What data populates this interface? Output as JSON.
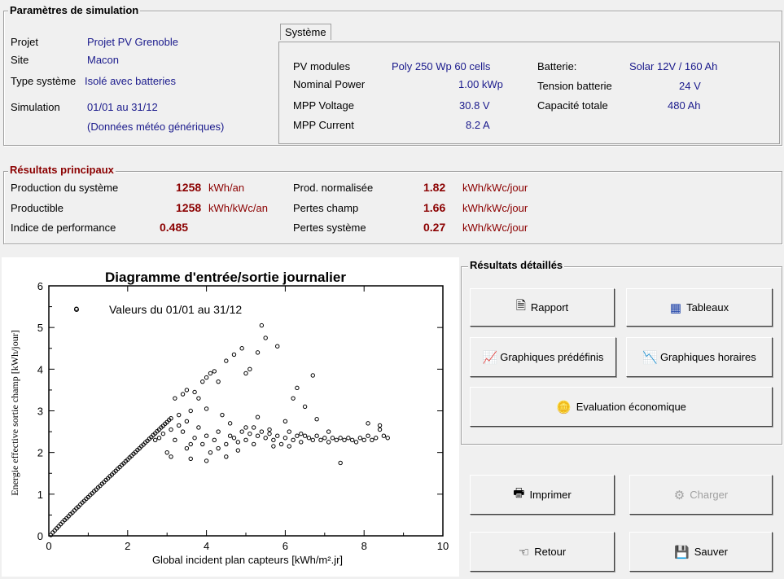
{
  "sim_params": {
    "title": "Paramètres de simulation",
    "projet_label": "Projet",
    "projet_value": "Projet PV Grenoble",
    "site_label": "Site",
    "site_value": "Macon",
    "type_label": "Type système",
    "type_value": "Isolé avec batteries",
    "simulation_label": "Simulation",
    "simulation_value": "01/01 au 31/12",
    "simulation_note": "(Données météo génériques)"
  },
  "systeme": {
    "tab_label": "Système",
    "pv_modules_label": "PV modules",
    "pv_modules_value": "Poly 250 Wp  60 cells",
    "nominal_power_label": "Nominal Power",
    "nominal_power_value": "1.00  kWp",
    "mpp_voltage_label": "MPP Voltage",
    "mpp_voltage_value": "30.8  V",
    "mpp_current_label": "MPP Current",
    "mpp_current_value": "8.2  A",
    "batterie_label": "Batterie:",
    "batterie_value": "Solar 12V / 160 Ah",
    "tension_label": "Tension batterie",
    "tension_value": "24   V",
    "capacite_label": "Capacité totale",
    "capacite_value": "480   Ah"
  },
  "resultats": {
    "title": "Résultats principaux",
    "production_label": "Production du système",
    "production_value": "1258",
    "production_unit": "kWh/an",
    "productible_label": "Productible",
    "productible_value": "1258",
    "productible_unit": "kWh/kWc/an",
    "indice_label": "Indice de performance",
    "indice_value": "0.485",
    "prod_norm_label": "Prod. normalisée",
    "prod_norm_value": "1.82",
    "prod_norm_unit": "kWh/kWc/jour",
    "pertes_champ_label": "Pertes champ",
    "pertes_champ_value": "1.66",
    "pertes_champ_unit": "kWh/kWc/jour",
    "pertes_sys_label": "Pertes système",
    "pertes_sys_value": "0.27",
    "pertes_sys_unit": "kWh/kWc/jour"
  },
  "details": {
    "title": "Résultats détaillés",
    "rapport": "Rapport",
    "tableaux": "Tableaux",
    "graph_predef": "Graphiques prédéfinis",
    "graph_horaires": "Graphiques horaires",
    "evaluation": "Evaluation économique"
  },
  "actions": {
    "imprimer": "Imprimer",
    "charger": "Charger",
    "retour": "Retour",
    "sauver": "Sauver"
  },
  "icons": {
    "rapport": "document-icon",
    "tableaux": "table-icon",
    "graph_predef": "chart-icon",
    "graph_horaires": "hourly-chart-icon",
    "evaluation": "coins-icon",
    "imprimer": "printer-icon",
    "charger": "load-icon",
    "retour": "back-hand-icon",
    "sauver": "save-icon"
  },
  "chart_data": {
    "type": "scatter",
    "title": "Diagramme d'entrée/sortie journalier",
    "legend": "Valeurs du 01/01 au 31/12",
    "xlabel": "Global incident plan capteurs [kWh/m².jr]",
    "ylabel": "Energie effective sortie champ [kWh/jour]",
    "xlim": [
      0,
      10
    ],
    "ylim": [
      0,
      6
    ],
    "xticks": [
      "0",
      "2",
      "4",
      "6",
      "8",
      "10"
    ],
    "yticks": [
      "0",
      "1",
      "2",
      "3",
      "4",
      "5",
      "6"
    ],
    "points": [
      [
        0.05,
        0.02
      ],
      [
        0.1,
        0.08
      ],
      [
        0.15,
        0.13
      ],
      [
        0.2,
        0.18
      ],
      [
        0.25,
        0.23
      ],
      [
        0.3,
        0.28
      ],
      [
        0.35,
        0.33
      ],
      [
        0.4,
        0.38
      ],
      [
        0.45,
        0.42
      ],
      [
        0.5,
        0.47
      ],
      [
        0.55,
        0.52
      ],
      [
        0.6,
        0.56
      ],
      [
        0.65,
        0.61
      ],
      [
        0.7,
        0.66
      ],
      [
        0.75,
        0.7
      ],
      [
        0.8,
        0.75
      ],
      [
        0.85,
        0.8
      ],
      [
        0.9,
        0.84
      ],
      [
        0.95,
        0.89
      ],
      [
        1.0,
        0.93
      ],
      [
        1.05,
        0.98
      ],
      [
        1.1,
        1.02
      ],
      [
        1.15,
        1.07
      ],
      [
        1.2,
        1.11
      ],
      [
        1.25,
        1.16
      ],
      [
        1.3,
        1.2
      ],
      [
        1.35,
        1.25
      ],
      [
        1.4,
        1.29
      ],
      [
        1.45,
        1.34
      ],
      [
        1.5,
        1.38
      ],
      [
        1.55,
        1.43
      ],
      [
        1.6,
        1.47
      ],
      [
        1.65,
        1.52
      ],
      [
        1.7,
        1.56
      ],
      [
        1.75,
        1.61
      ],
      [
        1.8,
        1.65
      ],
      [
        1.85,
        1.7
      ],
      [
        1.9,
        1.74
      ],
      [
        1.95,
        1.79
      ],
      [
        2.0,
        1.83
      ],
      [
        2.05,
        1.88
      ],
      [
        2.1,
        1.92
      ],
      [
        2.15,
        1.97
      ],
      [
        2.2,
        2.01
      ],
      [
        2.25,
        2.06
      ],
      [
        2.3,
        2.1
      ],
      [
        2.35,
        2.15
      ],
      [
        2.4,
        2.19
      ],
      [
        2.45,
        2.24
      ],
      [
        2.5,
        2.28
      ],
      [
        2.55,
        2.33
      ],
      [
        2.6,
        2.37
      ],
      [
        2.65,
        2.42
      ],
      [
        2.7,
        2.46
      ],
      [
        2.75,
        2.51
      ],
      [
        2.8,
        2.55
      ],
      [
        2.85,
        2.6
      ],
      [
        2.9,
        2.64
      ],
      [
        2.95,
        2.69
      ],
      [
        3.0,
        2.73
      ],
      [
        3.05,
        2.78
      ],
      [
        3.1,
        2.82
      ],
      [
        0.7,
        5.45
      ],
      [
        3.2,
        3.3
      ],
      [
        3.4,
        3.4
      ],
      [
        3.5,
        3.5
      ],
      [
        3.7,
        3.45
      ],
      [
        3.8,
        3.3
      ],
      [
        3.9,
        3.7
      ],
      [
        4.0,
        3.8
      ],
      [
        4.1,
        3.9
      ],
      [
        4.2,
        3.95
      ],
      [
        4.3,
        3.7
      ],
      [
        4.5,
        4.2
      ],
      [
        4.7,
        4.35
      ],
      [
        4.9,
        4.5
      ],
      [
        5.0,
        3.9
      ],
      [
        5.1,
        4.0
      ],
      [
        5.3,
        4.4
      ],
      [
        5.4,
        5.05
      ],
      [
        5.5,
        4.75
      ],
      [
        5.8,
        4.55
      ],
      [
        6.2,
        3.3
      ],
      [
        6.3,
        3.55
      ],
      [
        6.5,
        3.1
      ],
      [
        6.7,
        3.85
      ],
      [
        6.8,
        2.8
      ],
      [
        7.1,
        2.5
      ],
      [
        7.4,
        1.75
      ],
      [
        3.3,
        2.9
      ],
      [
        3.6,
        3.0
      ],
      [
        4.0,
        3.05
      ],
      [
        4.4,
        2.9
      ],
      [
        4.6,
        2.7
      ],
      [
        5.0,
        2.6
      ],
      [
        5.3,
        2.85
      ],
      [
        5.6,
        2.55
      ],
      [
        6.0,
        2.75
      ],
      [
        6.4,
        2.45
      ],
      [
        3.0,
        2.0
      ],
      [
        3.2,
        2.3
      ],
      [
        3.4,
        2.5
      ],
      [
        3.5,
        2.1
      ],
      [
        3.7,
        2.35
      ],
      [
        3.8,
        2.6
      ],
      [
        3.9,
        2.2
      ],
      [
        4.0,
        2.4
      ],
      [
        4.1,
        2.0
      ],
      [
        4.2,
        2.3
      ],
      [
        4.3,
        2.5
      ],
      [
        4.5,
        2.2
      ],
      [
        4.6,
        2.4
      ],
      [
        4.7,
        2.35
      ],
      [
        4.8,
        2.25
      ],
      [
        4.9,
        2.5
      ],
      [
        5.0,
        2.3
      ],
      [
        5.1,
        2.45
      ],
      [
        5.2,
        2.2
      ],
      [
        5.3,
        2.4
      ],
      [
        5.4,
        2.5
      ],
      [
        5.5,
        2.35
      ],
      [
        5.6,
        2.45
      ],
      [
        5.7,
        2.3
      ],
      [
        5.8,
        2.4
      ],
      [
        5.9,
        2.2
      ],
      [
        6.0,
        2.35
      ],
      [
        6.1,
        2.5
      ],
      [
        6.2,
        2.3
      ],
      [
        6.3,
        2.4
      ],
      [
        6.4,
        2.25
      ],
      [
        6.5,
        2.4
      ],
      [
        6.6,
        2.35
      ],
      [
        6.7,
        2.3
      ],
      [
        6.8,
        2.4
      ],
      [
        6.9,
        2.3
      ],
      [
        7.0,
        2.35
      ],
      [
        7.1,
        2.25
      ],
      [
        7.2,
        2.35
      ],
      [
        7.3,
        2.3
      ],
      [
        7.4,
        2.35
      ],
      [
        7.5,
        2.3
      ],
      [
        7.6,
        2.35
      ],
      [
        7.7,
        2.3
      ],
      [
        7.8,
        2.25
      ],
      [
        7.9,
        2.35
      ],
      [
        8.0,
        2.3
      ],
      [
        8.1,
        2.4
      ],
      [
        8.2,
        2.3
      ],
      [
        8.3,
        2.35
      ],
      [
        8.4,
        2.55
      ],
      [
        8.5,
        2.4
      ],
      [
        8.6,
        2.35
      ],
      [
        8.1,
        2.7
      ],
      [
        8.4,
        2.65
      ],
      [
        3.1,
        1.9
      ],
      [
        3.6,
        1.85
      ],
      [
        4.0,
        1.8
      ],
      [
        4.5,
        1.9
      ],
      [
        2.9,
        2.45
      ],
      [
        2.8,
        2.35
      ],
      [
        2.7,
        2.3
      ],
      [
        3.1,
        2.55
      ],
      [
        3.3,
        2.65
      ],
      [
        3.5,
        2.75
      ],
      [
        3.6,
        2.2
      ],
      [
        4.3,
        2.1
      ],
      [
        4.8,
        2.05
      ],
      [
        5.2,
        2.6
      ],
      [
        5.7,
        2.15
      ],
      [
        6.1,
        2.15
      ]
    ]
  }
}
